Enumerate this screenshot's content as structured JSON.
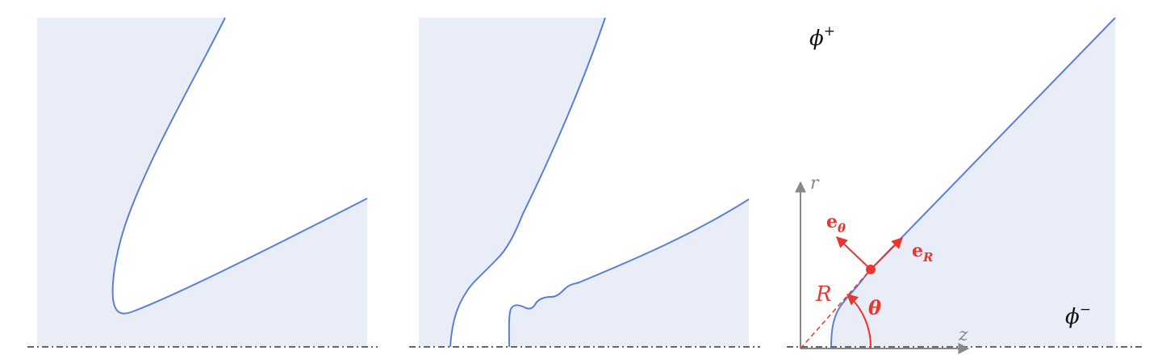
{
  "colors": {
    "fill": "#e8edf8",
    "curve": "#5a7fd4",
    "axis_dashdot": "#666666",
    "axes": "#888888",
    "annotation": "#e8382e",
    "text": "#111111"
  },
  "panel3": {
    "phi_plus": {
      "sym": "ϕ",
      "sup": "+"
    },
    "phi_minus": {
      "sym": "ϕ",
      "sup": "−"
    },
    "axis_r": "r",
    "axis_z": "z",
    "R": "R",
    "theta": "θ",
    "e_theta": {
      "base": "e",
      "sub": "θ"
    },
    "e_R": {
      "base": "e",
      "sub": "R"
    }
  }
}
